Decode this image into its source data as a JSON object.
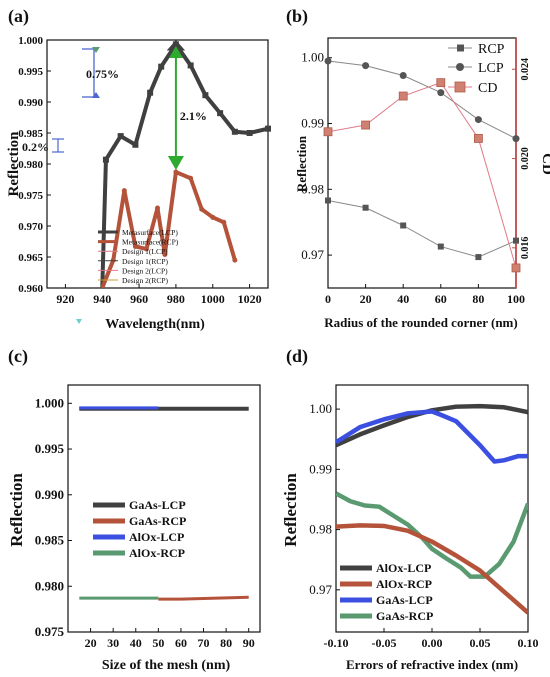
{
  "colors": {
    "lcp_dark": "#404040",
    "rcp_brown": "#b4533a",
    "blue": "#3b4fe0",
    "green": "#5a9a70",
    "pink": "#e07a8a",
    "cd_red": "#c0504d",
    "gold": "#c8a03a",
    "arrow_green": "#2eaa2e",
    "arrow_blue": "#4a68d0"
  },
  "chart_data": [
    {
      "panel": "(a)",
      "type": "line",
      "xlabel": "Wavelength(nm)",
      "ylabel": "Reflection",
      "xlim": [
        910,
        1030
      ],
      "ylim": [
        0.96,
        1.0
      ],
      "xticks": [
        "920",
        "940",
        "960",
        "980",
        "1000",
        "1020"
      ],
      "yticks": [
        "0.960",
        "0.965",
        "0.970",
        "0.975",
        "0.980",
        "0.985",
        "0.990",
        "0.995",
        "1.000"
      ],
      "legend": [
        "Metasurface(LCP)",
        "Metasurface(RCP)",
        "Design 1(LCP)",
        "Design 1(RCP)",
        "Design 2(LCP)",
        "Design 2(RCP)"
      ],
      "series": [
        {
          "name": "Metasurface(LCP)",
          "x": [
            940,
            942,
            950,
            958,
            966,
            972,
            980,
            988,
            996,
            1004,
            1012,
            1020,
            1030
          ],
          "y": [
            0.96,
            0.9807,
            0.9845,
            0.9831,
            0.9915,
            0.9957,
            0.9993,
            0.9959,
            0.9911,
            0.9882,
            0.9852,
            0.985,
            0.9857
          ]
        },
        {
          "name": "Metasurface(RCP)",
          "x": [
            940,
            946,
            952,
            958,
            964,
            970,
            974,
            980,
            988,
            994,
            1000,
            1006,
            1012
          ],
          "y": [
            0.96,
            0.9645,
            0.9757,
            0.9667,
            0.9663,
            0.9729,
            0.9654,
            0.9787,
            0.9777,
            0.9727,
            0.9714,
            0.9706,
            0.9645
          ]
        }
      ],
      "annotations": [
        "0.75%",
        "0.2%",
        "2.1%"
      ]
    },
    {
      "panel": "(b)",
      "type": "line",
      "xlabel": "Radius of the rounded corner (nm)",
      "ylabel": "Reflection",
      "y2label": "CD",
      "xlim": [
        0,
        100
      ],
      "ylim": [
        0.965,
        1.003
      ],
      "y2lim": [
        0.0142,
        0.0254
      ],
      "xticks": [
        "0",
        "20",
        "40",
        "60",
        "80",
        "100"
      ],
      "yticks": [
        "0.97",
        "0.98",
        "0.99",
        "1.00"
      ],
      "y2ticks": [
        "0.016",
        "0.020",
        "0.024"
      ],
      "legend": [
        "RCP",
        "LCP",
        "CD"
      ],
      "series": [
        {
          "name": "RCP",
          "x": [
            0,
            20,
            40,
            60,
            80,
            100
          ],
          "y": [
            0.9783,
            0.9772,
            0.9745,
            0.9713,
            0.9697,
            0.9722
          ]
        },
        {
          "name": "LCP",
          "x": [
            0,
            20,
            40,
            60,
            80,
            100
          ],
          "y": [
            0.9995,
            0.9988,
            0.9973,
            0.9947,
            0.9906,
            0.9877
          ]
        },
        {
          "name": "CD",
          "x": [
            0,
            20,
            40,
            60,
            80,
            100
          ],
          "y": [
            0.0212,
            0.0215,
            0.0228,
            0.0234,
            0.0209,
            0.0151
          ]
        }
      ]
    },
    {
      "panel": "(c)",
      "type": "line",
      "xlabel": "Size of the mesh (nm)",
      "ylabel": "Reflection",
      "xlim": [
        10,
        95
      ],
      "ylim": [
        0.975,
        1.002
      ],
      "xticks": [
        "20",
        "30",
        "40",
        "50",
        "60",
        "70",
        "80",
        "90"
      ],
      "yticks": [
        "0.975",
        "0.980",
        "0.985",
        "0.990",
        "0.995",
        "1.000"
      ],
      "legend": [
        "GaAs-LCP",
        "GaAs-RCP",
        "AlOx-LCP",
        "AlOx-RCP"
      ],
      "series": [
        {
          "name": "GaAs-LCP",
          "x": [
            15,
            50,
            90
          ],
          "y": [
            0.9994,
            0.9994,
            0.9994
          ]
        },
        {
          "name": "GaAs-RCP",
          "x": [
            50,
            60,
            90
          ],
          "y": [
            0.9786,
            0.9786,
            0.9788
          ]
        },
        {
          "name": "AlOx-LCP",
          "x": [
            15,
            50
          ],
          "y": [
            0.9995,
            0.9995
          ]
        },
        {
          "name": "AlOx-RCP",
          "x": [
            15,
            50
          ],
          "y": [
            0.9787,
            0.9787
          ]
        }
      ]
    },
    {
      "panel": "(d)",
      "type": "line",
      "xlabel": "Errors of refractive index (nm)",
      "ylabel": "Reflection",
      "xlim": [
        -0.1,
        0.1
      ],
      "ylim": [
        0.963,
        1.004
      ],
      "xticks": [
        "-0.10",
        "-0.05",
        "0.00",
        "0.05",
        "0.10"
      ],
      "yticks": [
        "0.97",
        "0.98",
        "0.99",
        "1.00"
      ],
      "legend": [
        "AlOx-LCP",
        "AlOx-RCP",
        "GaAs-LCP",
        "GaAs-RCP"
      ],
      "series": [
        {
          "name": "AlOx-LCP",
          "x": [
            -0.1,
            -0.075,
            -0.05,
            -0.025,
            0,
            0.025,
            0.05,
            0.075,
            0.1
          ],
          "y": [
            0.994,
            0.9958,
            0.9973,
            0.9987,
            0.9998,
            1.0004,
            1.0005,
            1.0003,
            0.9995
          ]
        },
        {
          "name": "AlOx-RCP",
          "x": [
            -0.1,
            -0.075,
            -0.05,
            -0.025,
            0,
            0.025,
            0.05,
            0.075,
            0.1
          ],
          "y": [
            0.9805,
            0.9807,
            0.9806,
            0.9798,
            0.978,
            0.9757,
            0.9732,
            0.9697,
            0.9662
          ]
        },
        {
          "name": "GaAs-LCP",
          "x": [
            -0.1,
            -0.075,
            -0.05,
            -0.025,
            0,
            0.01,
            0.025,
            0.05,
            0.065,
            0.075,
            0.09,
            0.1
          ],
          "y": [
            0.9945,
            0.997,
            0.9983,
            0.9993,
            0.9996,
            0.999,
            0.998,
            0.994,
            0.9913,
            0.9915,
            0.9922,
            0.9922
          ]
        },
        {
          "name": "GaAs-RCP",
          "x": [
            -0.1,
            -0.085,
            -0.07,
            -0.055,
            -0.04,
            -0.025,
            -0.01,
            0,
            0.015,
            0.03,
            0.04,
            0.055,
            0.07,
            0.085,
            0.1
          ],
          "y": [
            0.986,
            0.9847,
            0.984,
            0.9838,
            0.9823,
            0.9808,
            0.9786,
            0.9768,
            0.9752,
            0.9737,
            0.9722,
            0.9722,
            0.9743,
            0.978,
            0.9843
          ]
        }
      ]
    }
  ]
}
